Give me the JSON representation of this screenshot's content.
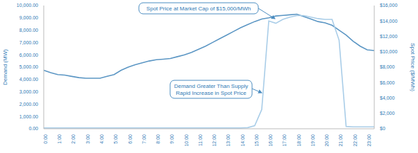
{
  "chart_data": {
    "type": "line",
    "categories": [
      "0:00",
      null,
      "1:00",
      null,
      "2:00",
      null,
      "3:00",
      null,
      "4:00",
      null,
      "5:00",
      null,
      "6:00",
      null,
      "7:00",
      null,
      "8:00",
      null,
      "9:00",
      null,
      "10:00",
      null,
      "11:00",
      null,
      "12:00",
      null,
      "13:00",
      null,
      "14:00",
      null,
      "15:00",
      null,
      "16:00",
      null,
      "17:00",
      null,
      "18:00",
      null,
      "19:00",
      null,
      "20:00",
      null,
      "21:00",
      null,
      "22:00",
      null,
      "23:00",
      null
    ],
    "series": [
      {
        "name": "Demand (MW)",
        "color": "#5b96c4",
        "values": [
          4750,
          4550,
          4400,
          4350,
          4250,
          4150,
          4100,
          4100,
          4100,
          4250,
          4400,
          4750,
          5000,
          5200,
          5350,
          5500,
          5600,
          5650,
          5700,
          5850,
          6000,
          6200,
          6450,
          6700,
          7000,
          7300,
          7600,
          7900,
          8200,
          8450,
          8700,
          8900,
          9000,
          9150,
          9200,
          9250,
          9300,
          9100,
          8900,
          8700,
          8600,
          8400,
          8000,
          7600,
          7100,
          6700,
          6400,
          6350
        ]
      },
      {
        "name": "Spot Price ($/MWh)",
        "color": "#a9cde8",
        "axis": "y2",
        "values": [
          100,
          100,
          100,
          100,
          100,
          100,
          100,
          100,
          100,
          100,
          100,
          100,
          100,
          100,
          100,
          100,
          100,
          100,
          100,
          100,
          100,
          100,
          100,
          100,
          100,
          100,
          100,
          100,
          100,
          150,
          400,
          2500,
          14000,
          13700,
          14200,
          14500,
          14700,
          14700,
          14500,
          14300,
          14200,
          14200,
          11500,
          300,
          250,
          250,
          250,
          250
        ]
      }
    ],
    "ylim": [
      0,
      10000
    ],
    "yticks": [
      {
        "value": 0,
        "label": "0.00"
      },
      {
        "value": 1000,
        "label": "1,000.00"
      },
      {
        "value": 2000,
        "label": "2,000.00"
      },
      {
        "value": 3000,
        "label": "3,000.00"
      },
      {
        "value": 4000,
        "label": "4,000.00"
      },
      {
        "value": 5000,
        "label": "5,000.00"
      },
      {
        "value": 6000,
        "label": "6,000.00"
      },
      {
        "value": 7000,
        "label": "7,000.00"
      },
      {
        "value": 8000,
        "label": "8,000.00"
      },
      {
        "value": 9000,
        "label": "9,000.00"
      },
      {
        "value": 10000,
        "label": "10,000.00"
      }
    ],
    "y2lim": [
      0,
      16000
    ],
    "y2ticks": [
      {
        "value": 0,
        "label": "$0"
      },
      {
        "value": 2000,
        "label": "$2,000"
      },
      {
        "value": 4000,
        "label": "$4,000"
      },
      {
        "value": 6000,
        "label": "$6,000"
      },
      {
        "value": 8000,
        "label": "$8,000"
      },
      {
        "value": 10000,
        "label": "$10,000"
      },
      {
        "value": 12000,
        "label": "$12,000"
      },
      {
        "value": 14000,
        "label": "$14,000"
      },
      {
        "value": 16000,
        "label": "$16,000"
      }
    ],
    "ylabel": "Demand (MW)",
    "y2label": "Spot Price ($/MWh)",
    "annotations": [
      {
        "lines": [
          "Spot Price at Market Cap of $15,000/MWh"
        ]
      },
      {
        "lines": [
          "Demand Greater Than Supply",
          "Rapid Increase in Spot Price"
        ]
      }
    ],
    "grid": false
  }
}
